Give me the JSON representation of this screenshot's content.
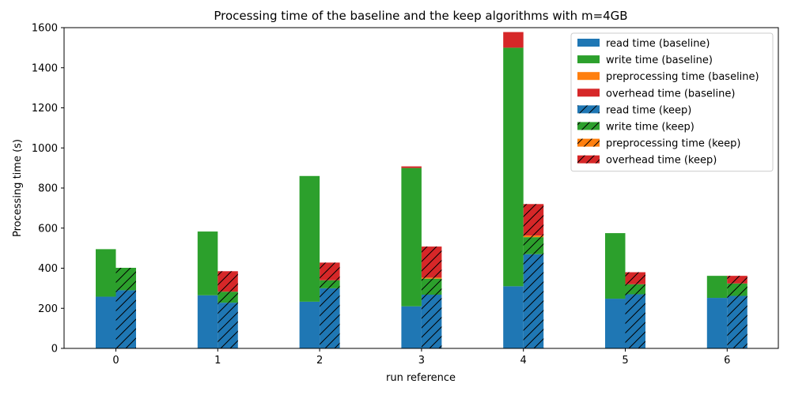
{
  "chart_data": {
    "type": "bar",
    "stacked": true,
    "grouped": true,
    "title": "Processing time of the baseline and the keep algorithms with m=4GB",
    "xlabel": "run reference",
    "ylabel": "Processing time (s)",
    "categories": [
      "0",
      "1",
      "2",
      "3",
      "4",
      "5",
      "6"
    ],
    "ylim": [
      0,
      1600
    ],
    "yticks": [
      0,
      200,
      400,
      600,
      800,
      1000,
      1200,
      1400,
      1600
    ],
    "grid": false,
    "legend_position": "top-right",
    "groups": [
      {
        "name": "baseline",
        "hatch": false,
        "series": [
          {
            "name": "read time (baseline)",
            "color": "#1f77b4",
            "values": [
              258,
              265,
              233,
              210,
              310,
              248,
              252
            ]
          },
          {
            "name": "write time (baseline)",
            "color": "#2ca02c",
            "values": [
              237,
              318,
              627,
              690,
              1190,
              327,
              110
            ]
          },
          {
            "name": "preprocessing time (baseline)",
            "color": "#ff7f0e",
            "values": [
              0,
              0,
              0,
              0,
              0,
              0,
              0
            ]
          },
          {
            "name": "overhead time (baseline)",
            "color": "#d62728",
            "values": [
              0,
              0,
              0,
              8,
              78,
              0,
              0
            ]
          }
        ]
      },
      {
        "name": "keep",
        "hatch": true,
        "series": [
          {
            "name": "read time (keep)",
            "color": "#1f77b4",
            "values": [
              290,
              228,
              300,
              268,
              470,
              270,
              262
            ]
          },
          {
            "name": "write time (keep)",
            "color": "#2ca02c",
            "values": [
              112,
              55,
              40,
              80,
              85,
              50,
              62
            ]
          },
          {
            "name": "preprocessing time (keep)",
            "color": "#ff7f0e",
            "values": [
              0,
              0,
              0,
              5,
              8,
              0,
              0
            ]
          },
          {
            "name": "overhead time (keep)",
            "color": "#d62728",
            "values": [
              0,
              102,
              88,
              155,
              157,
              60,
              38
            ]
          }
        ]
      }
    ]
  }
}
